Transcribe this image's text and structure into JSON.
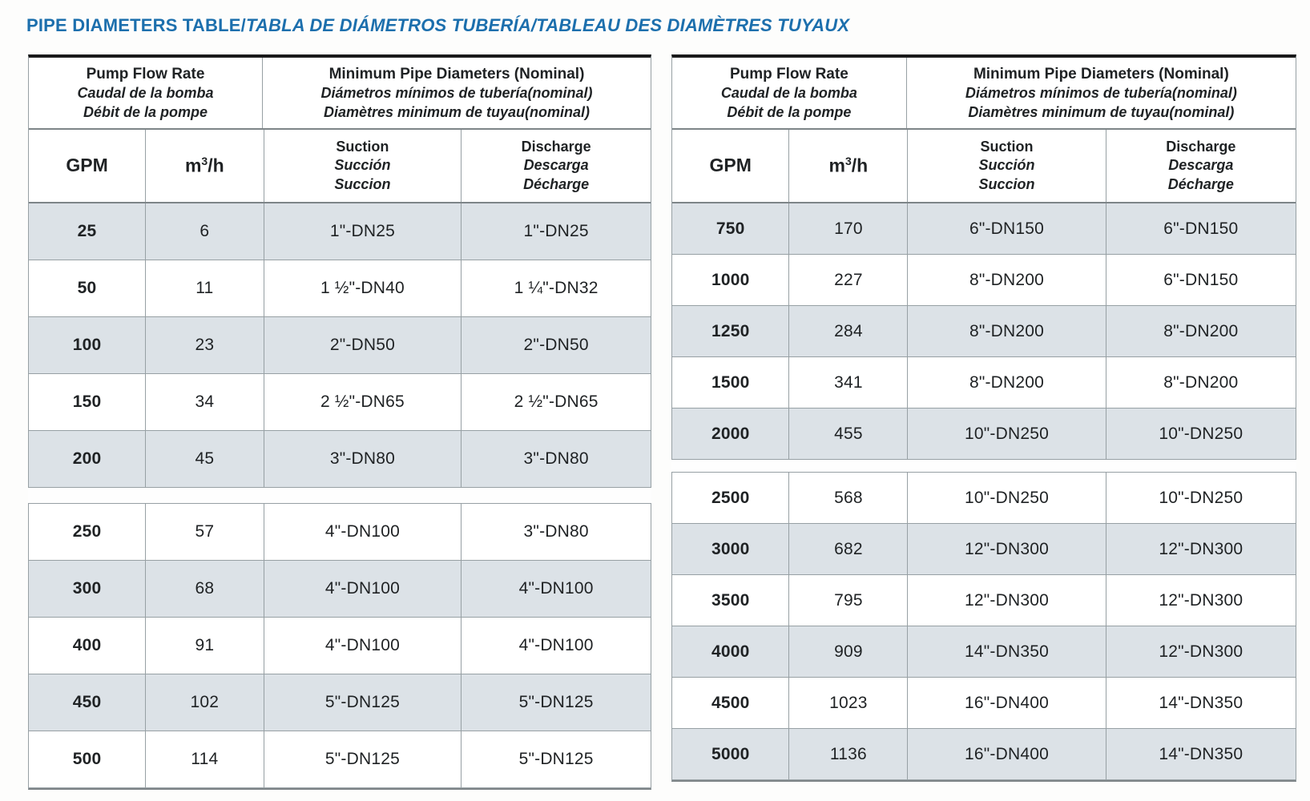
{
  "page": {
    "title_en": "PIPE DIAMETERS TABLE",
    "title_sep": "/",
    "title_intl": "TABLA DE DIÁMETROS TUBERÍA/TABLEAU DES DIAMÈTRES TUYAUX",
    "accent_color": "#1c6fad",
    "shade_color": "#dce2e7"
  },
  "header": {
    "flow": {
      "en": "Pump Flow Rate",
      "es": "Caudal de la bomba",
      "fr": "Débit de la pompe"
    },
    "diam": {
      "en": "Minimum Pipe Diameters (Nominal)",
      "es": "Diámetros mínimos de tubería(nominal)",
      "fr": "Diamètres minimum de tuyau(nominal)"
    },
    "gpm": "GPM",
    "m3h_base": "m",
    "m3h_sup": "3",
    "m3h_rest": "/h",
    "suction": {
      "en": "Suction",
      "es": "Succión",
      "fr": "Succion"
    },
    "discharge": {
      "en": "Discharge",
      "es": "Descarga",
      "fr": "Décharge"
    }
  },
  "tables": [
    {
      "id": "left",
      "sections": [
        {
          "rows": [
            {
              "gpm": "25",
              "m3h": "6",
              "suction": "1\"-DN25",
              "discharge": "1\"-DN25",
              "shaded": true
            },
            {
              "gpm": "50",
              "m3h": "11",
              "suction": "1 ½\"-DN40",
              "discharge": "1 ¼\"-DN32",
              "shaded": false
            },
            {
              "gpm": "100",
              "m3h": "23",
              "suction": "2\"-DN50",
              "discharge": "2\"-DN50",
              "shaded": true
            },
            {
              "gpm": "150",
              "m3h": "34",
              "suction": "2 ½\"-DN65",
              "discharge": "2 ½\"-DN65",
              "shaded": false
            },
            {
              "gpm": "200",
              "m3h": "45",
              "suction": "3\"-DN80",
              "discharge": "3\"-DN80",
              "shaded": true
            }
          ]
        },
        {
          "rows": [
            {
              "gpm": "250",
              "m3h": "57",
              "suction": "4\"-DN100",
              "discharge": "3\"-DN80",
              "shaded": false
            },
            {
              "gpm": "300",
              "m3h": "68",
              "suction": "4\"-DN100",
              "discharge": "4\"-DN100",
              "shaded": true
            },
            {
              "gpm": "400",
              "m3h": "91",
              "suction": "4\"-DN100",
              "discharge": "4\"-DN100",
              "shaded": false
            },
            {
              "gpm": "450",
              "m3h": "102",
              "suction": "5\"-DN125",
              "discharge": "5\"-DN125",
              "shaded": true
            },
            {
              "gpm": "500",
              "m3h": "114",
              "suction": "5\"-DN125",
              "discharge": "5\"-DN125",
              "shaded": false
            }
          ]
        }
      ]
    },
    {
      "id": "right",
      "sections": [
        {
          "rows": [
            {
              "gpm": "750",
              "m3h": "170",
              "suction": "6\"-DN150",
              "discharge": "6\"-DN150",
              "shaded": true
            },
            {
              "gpm": "1000",
              "m3h": "227",
              "suction": "8\"-DN200",
              "discharge": "6\"-DN150",
              "shaded": false
            },
            {
              "gpm": "1250",
              "m3h": "284",
              "suction": "8\"-DN200",
              "discharge": "8\"-DN200",
              "shaded": true
            },
            {
              "gpm": "1500",
              "m3h": "341",
              "suction": "8\"-DN200",
              "discharge": "8\"-DN200",
              "shaded": false
            },
            {
              "gpm": "2000",
              "m3h": "455",
              "suction": "10\"-DN250",
              "discharge": "10\"-DN250",
              "shaded": true
            }
          ]
        },
        {
          "rows": [
            {
              "gpm": "2500",
              "m3h": "568",
              "suction": "10\"-DN250",
              "discharge": "10\"-DN250",
              "shaded": false
            },
            {
              "gpm": "3000",
              "m3h": "682",
              "suction": "12\"-DN300",
              "discharge": "12\"-DN300",
              "shaded": true
            },
            {
              "gpm": "3500",
              "m3h": "795",
              "suction": "12\"-DN300",
              "discharge": "12\"-DN300",
              "shaded": false
            },
            {
              "gpm": "4000",
              "m3h": "909",
              "suction": "14\"-DN350",
              "discharge": "12\"-DN300",
              "shaded": true
            },
            {
              "gpm": "4500",
              "m3h": "1023",
              "suction": "16\"-DN400",
              "discharge": "14\"-DN350",
              "shaded": false
            },
            {
              "gpm": "5000",
              "m3h": "1136",
              "suction": "16\"-DN400",
              "discharge": "14\"-DN350",
              "shaded": true
            }
          ]
        }
      ]
    }
  ]
}
